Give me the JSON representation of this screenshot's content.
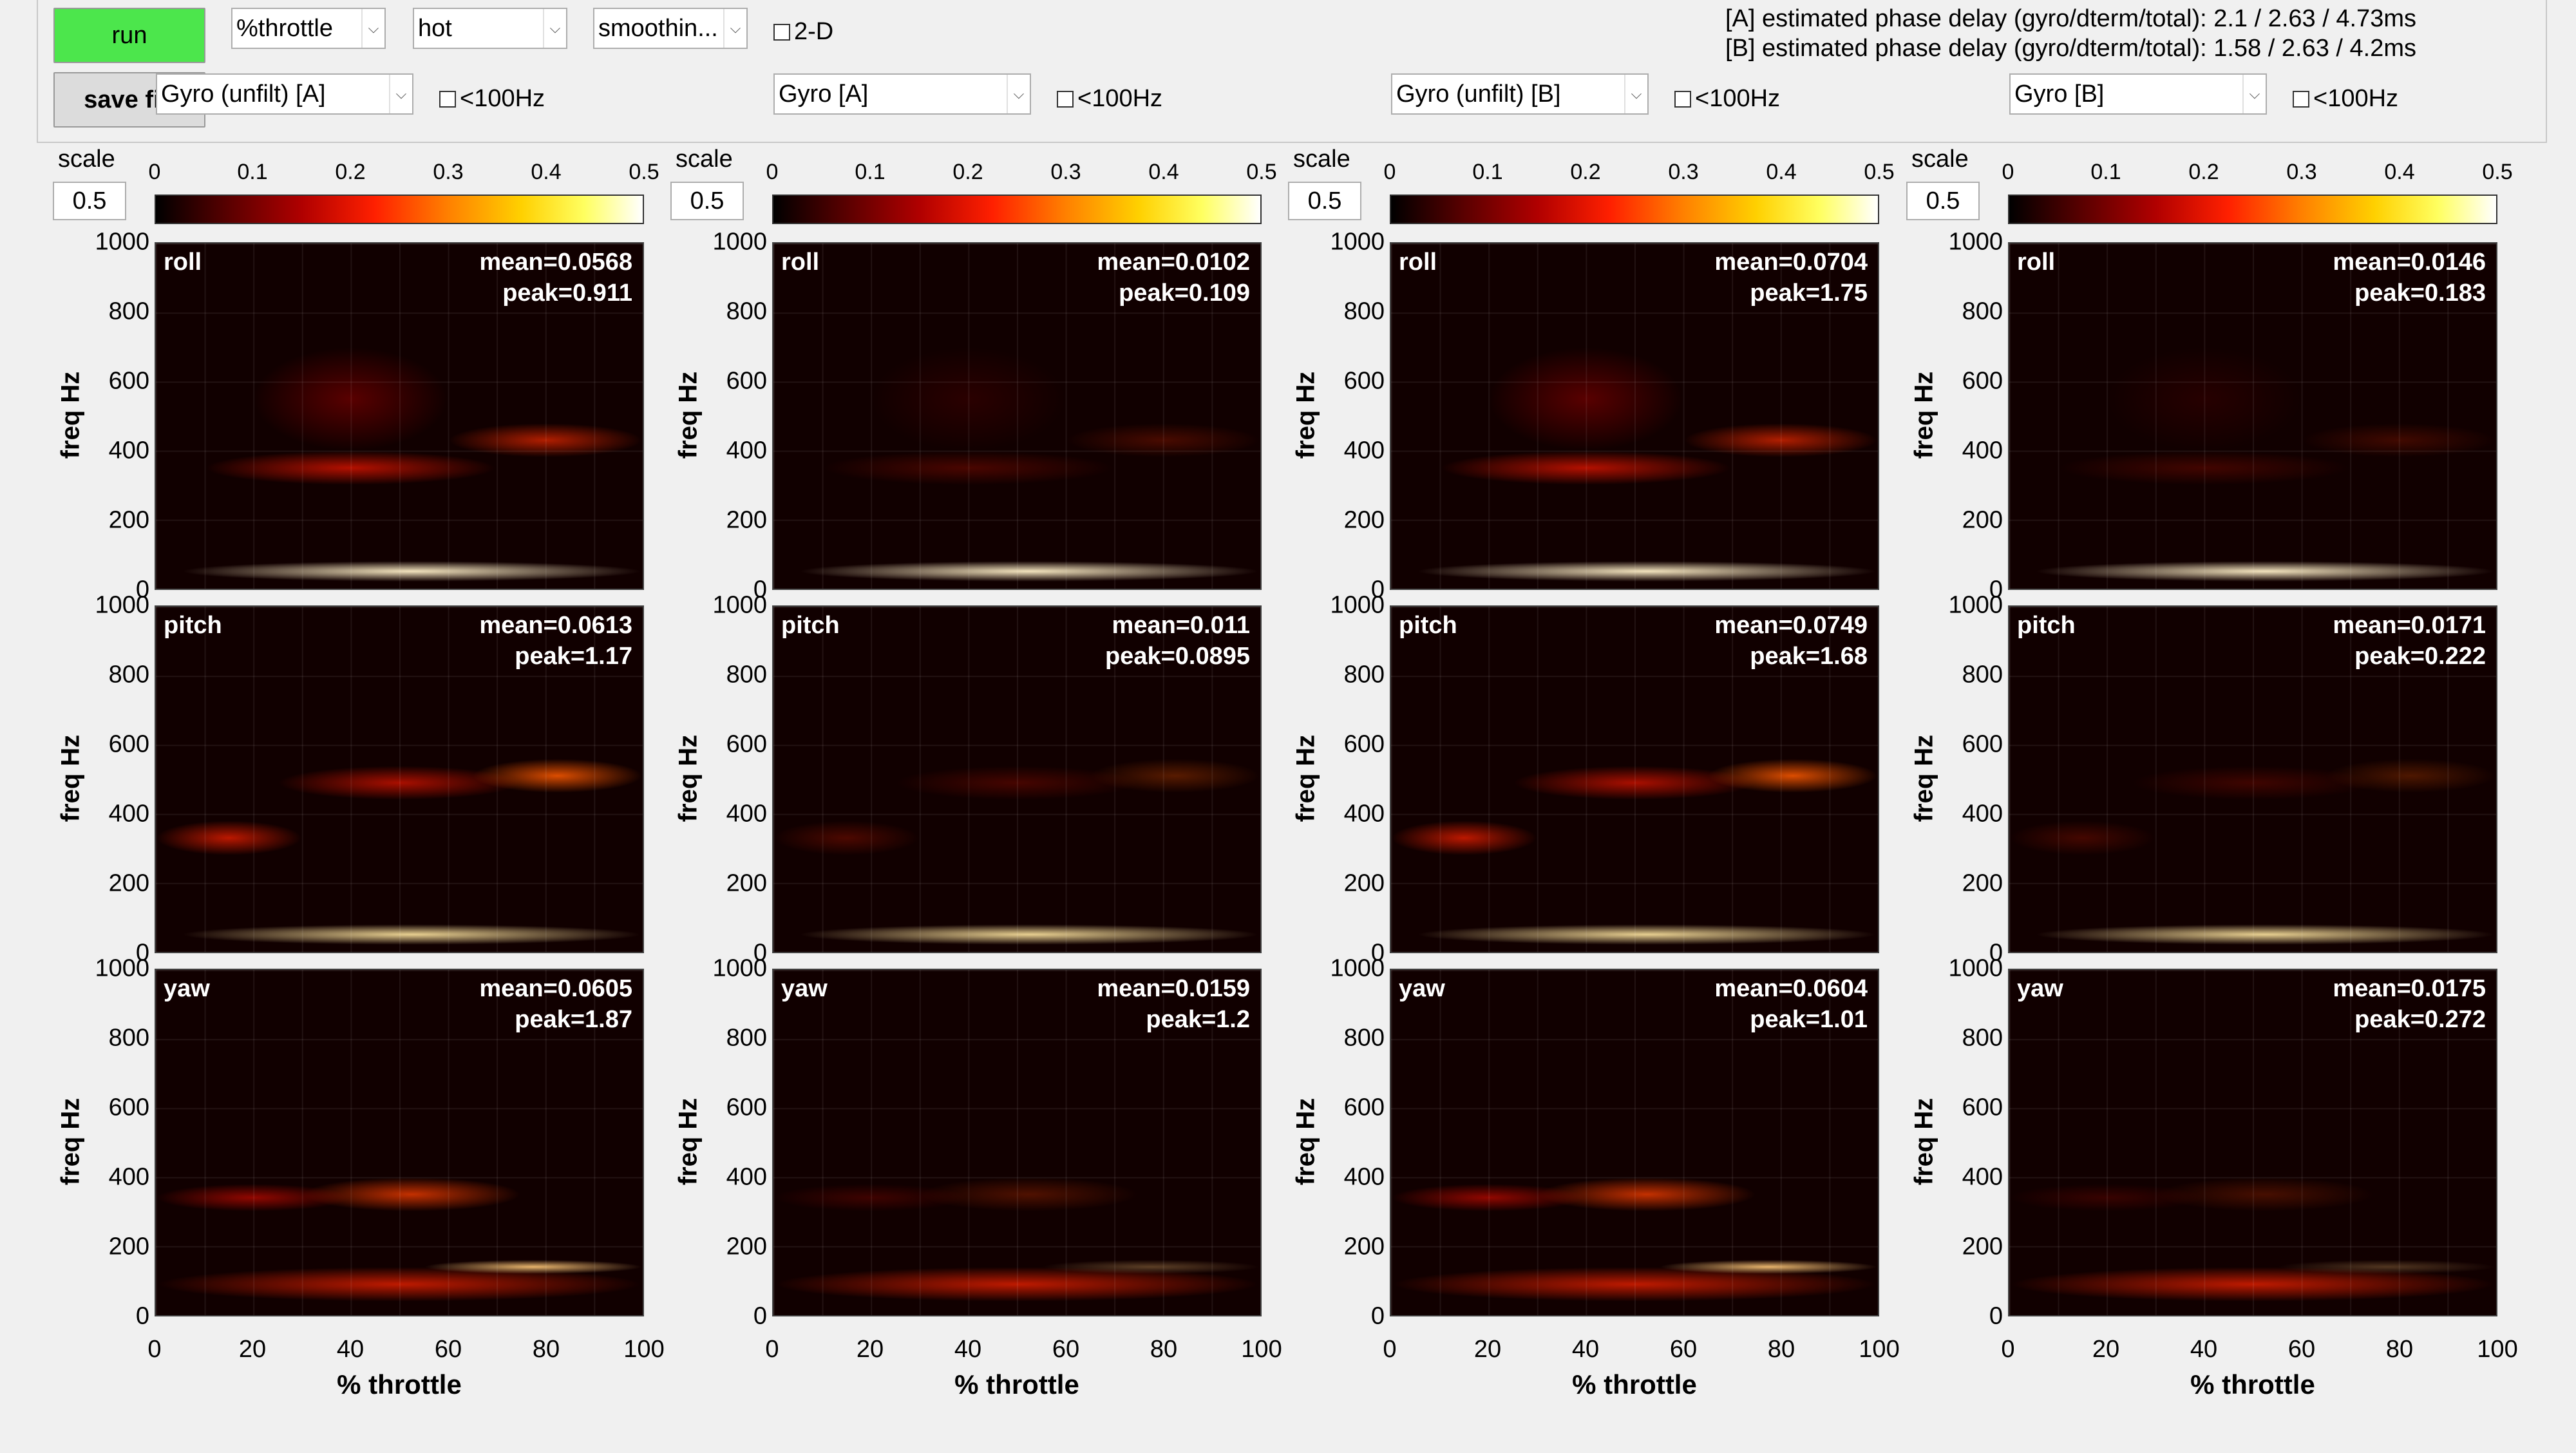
{
  "toolbar": {
    "run_label": "run",
    "save_label": "save fig",
    "xaxis_select": "%throttle",
    "colormap_select": "hot",
    "smoothing_select": "smoothin...",
    "twod_label": "2-D",
    "phase_a": "[A] estimated phase delay (gyro/dterm/total): 2.1 / 2.63 / 4.73ms",
    "phase_b": "[B] estimated phase delay (gyro/dterm/total): 1.58 / 2.63 / 4.2ms",
    "lt100_label": "<100Hz"
  },
  "columns": [
    {
      "source": "Gyro (unfilt) [A]",
      "scale_label": "scale",
      "scale_value": "0.5",
      "plots": [
        {
          "axis": "roll",
          "mean": "mean=0.0568",
          "peak": "peak=0.911"
        },
        {
          "axis": "pitch",
          "mean": "mean=0.0613",
          "peak": "peak=1.17"
        },
        {
          "axis": "yaw",
          "mean": "mean=0.0605",
          "peak": "peak=1.87"
        }
      ]
    },
    {
      "source": "Gyro [A]",
      "scale_label": "scale",
      "scale_value": "0.5",
      "plots": [
        {
          "axis": "roll",
          "mean": "mean=0.0102",
          "peak": "peak=0.109"
        },
        {
          "axis": "pitch",
          "mean": "mean=0.011",
          "peak": "peak=0.0895"
        },
        {
          "axis": "yaw",
          "mean": "mean=0.0159",
          "peak": "peak=1.2"
        }
      ]
    },
    {
      "source": "Gyro (unfilt) [B]",
      "scale_label": "scale",
      "scale_value": "0.5",
      "plots": [
        {
          "axis": "roll",
          "mean": "mean=0.0704",
          "peak": "peak=1.75"
        },
        {
          "axis": "pitch",
          "mean": "mean=0.0749",
          "peak": "peak=1.68"
        },
        {
          "axis": "yaw",
          "mean": "mean=0.0604",
          "peak": "peak=1.01"
        }
      ]
    },
    {
      "source": "Gyro [B]",
      "scale_label": "scale",
      "scale_value": "0.5",
      "plots": [
        {
          "axis": "roll",
          "mean": "mean=0.0146",
          "peak": "peak=0.183"
        },
        {
          "axis": "pitch",
          "mean": "mean=0.0171",
          "peak": "peak=0.222"
        },
        {
          "axis": "yaw",
          "mean": "mean=0.0175",
          "peak": "peak=0.272"
        }
      ]
    }
  ],
  "colorbar_ticks": [
    "0",
    "0.1",
    "0.2",
    "0.3",
    "0.4",
    "0.5"
  ],
  "y_ticks": [
    "1000",
    "800",
    "600",
    "400",
    "200",
    "0"
  ],
  "x_ticks": [
    "0",
    "20",
    "40",
    "60",
    "80",
    "100"
  ],
  "y_label": "freq Hz",
  "x_label": "% throttle",
  "chart_data": {
    "type": "heatmap",
    "xlabel": "% throttle",
    "ylabel": "freq Hz",
    "xlim": [
      0,
      100
    ],
    "ylim": [
      0,
      1000
    ],
    "colorbar_range": [
      0,
      0.5
    ],
    "colormap": "hot",
    "panels_grid": "3 rows (roll, pitch, yaw) x 4 columns (Gyro (unfilt) [A], Gyro [A], Gyro (unfilt) [B], Gyro [B])"
  }
}
